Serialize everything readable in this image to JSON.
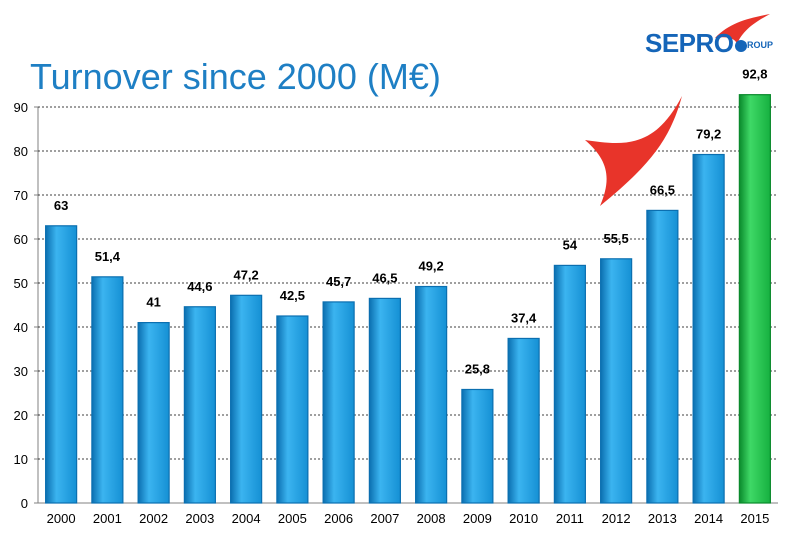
{
  "brand": {
    "name": "SEPRO",
    "suffix": "GROUP"
  },
  "chart_data": {
    "type": "bar",
    "title": "Turnover since 2000 (M€)",
    "categories": [
      "2000",
      "2001",
      "2002",
      "2003",
      "2004",
      "2005",
      "2006",
      "2007",
      "2008",
      "2009",
      "2010",
      "2011",
      "2012",
      "2013",
      "2014",
      "2015"
    ],
    "values": [
      63,
      51.4,
      41,
      44.6,
      47.2,
      42.5,
      45.7,
      46.5,
      49.2,
      25.8,
      37.4,
      54,
      55.5,
      66.5,
      79.2,
      92.8
    ],
    "data_labels": [
      "63",
      "51,4",
      "41",
      "44,6",
      "47,2",
      "42,5",
      "45,7",
      "46,5",
      "49,2",
      "25,8",
      "37,4",
      "54",
      "55,5",
      "66,5",
      "79,2",
      "92,8"
    ],
    "yticks": [
      0,
      10,
      20,
      30,
      40,
      50,
      60,
      70,
      80,
      90
    ],
    "ylim": [
      0,
      90
    ],
    "xlabel": "",
    "ylabel": "",
    "grid": true,
    "colors": {
      "bar": "#1ea3e6",
      "bar_dark": "#0b6fb0",
      "highlight": "#1ec24a",
      "highlight_dark": "#0a8a2c",
      "accent": "#e8342a"
    },
    "highlight_index": 15
  }
}
